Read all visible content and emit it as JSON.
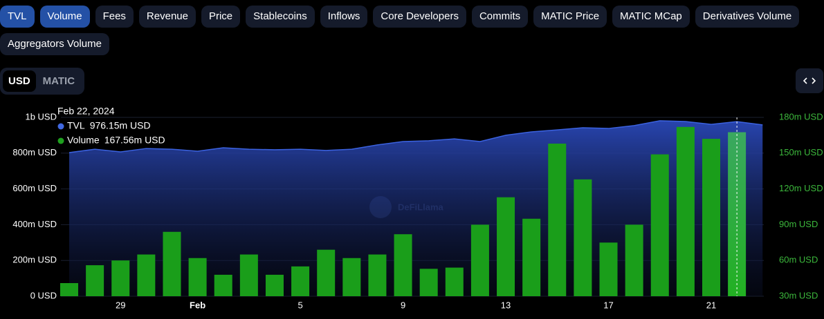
{
  "tabs": [
    {
      "label": "TVL",
      "active": true
    },
    {
      "label": "Volume",
      "active": true
    },
    {
      "label": "Fees",
      "active": false
    },
    {
      "label": "Revenue",
      "active": false
    },
    {
      "label": "Price",
      "active": false
    },
    {
      "label": "Stablecoins",
      "active": false
    },
    {
      "label": "Inflows",
      "active": false
    },
    {
      "label": "Core Developers",
      "active": false
    },
    {
      "label": "Commits",
      "active": false
    },
    {
      "label": "MATIC Price",
      "active": false
    },
    {
      "label": "MATIC MCap",
      "active": false
    },
    {
      "label": "Derivatives Volume",
      "active": false
    },
    {
      "label": "Aggregators Volume",
      "active": false
    }
  ],
  "currency_toggle": {
    "options": [
      "USD",
      "MATIC"
    ],
    "selected": 0
  },
  "watermark": "DeFiLlama",
  "tooltip": {
    "date": "Feb 22, 2024",
    "items": [
      {
        "name": "TVL",
        "value": "976.15m USD",
        "color": "#4169e1"
      },
      {
        "name": "Volume",
        "value": "167.56m USD",
        "color": "#1fa01f"
      }
    ]
  },
  "chart_data": {
    "type": "bar-line",
    "categories": [
      null,
      null,
      "29",
      null,
      null,
      "Feb",
      null,
      null,
      null,
      "5",
      null,
      null,
      null,
      "9",
      null,
      null,
      null,
      "13",
      null,
      null,
      null,
      "17",
      null,
      null,
      null,
      "21",
      null,
      null
    ],
    "series": [
      {
        "name": "TVL",
        "type": "line",
        "color": "#3b62e0",
        "values": [
          803,
          822,
          807,
          826,
          822,
          811,
          830,
          822,
          819,
          822,
          815,
          822,
          846,
          865,
          869,
          880,
          865,
          900,
          919,
          930,
          942,
          938,
          954,
          981,
          977,
          961,
          976.15,
          958
        ]
      },
      {
        "name": "Volume",
        "type": "bar",
        "axis": "y2",
        "color": "#1a9e1a",
        "values": [
          41,
          56,
          60,
          65,
          84,
          62,
          48,
          65,
          48,
          55,
          69,
          62,
          65,
          82,
          53,
          54,
          90,
          113,
          95,
          158,
          128,
          75,
          90,
          149,
          172,
          162,
          167.56,
          null
        ]
      }
    ],
    "ylim": [
      0,
      1000
    ],
    "yticks": [
      {
        "value": 0,
        "label": "0 USD"
      },
      {
        "value": 200,
        "label": "200m USD"
      },
      {
        "value": 400,
        "label": "400m USD"
      },
      {
        "value": 600,
        "label": "600m USD"
      },
      {
        "value": 800,
        "label": "800m USD"
      },
      {
        "value": 1000,
        "label": "1b USD"
      }
    ],
    "y2lim": [
      30,
      180
    ],
    "y2ticks": [
      {
        "value": 30,
        "label": "30m USD"
      },
      {
        "value": 60,
        "label": "60m USD"
      },
      {
        "value": 90,
        "label": "90m USD"
      },
      {
        "value": 120,
        "label": "120m USD"
      },
      {
        "value": 150,
        "label": "150m USD"
      },
      {
        "value": 180,
        "label": "180m USD"
      }
    ],
    "highlight_index": 26,
    "grid": true
  }
}
